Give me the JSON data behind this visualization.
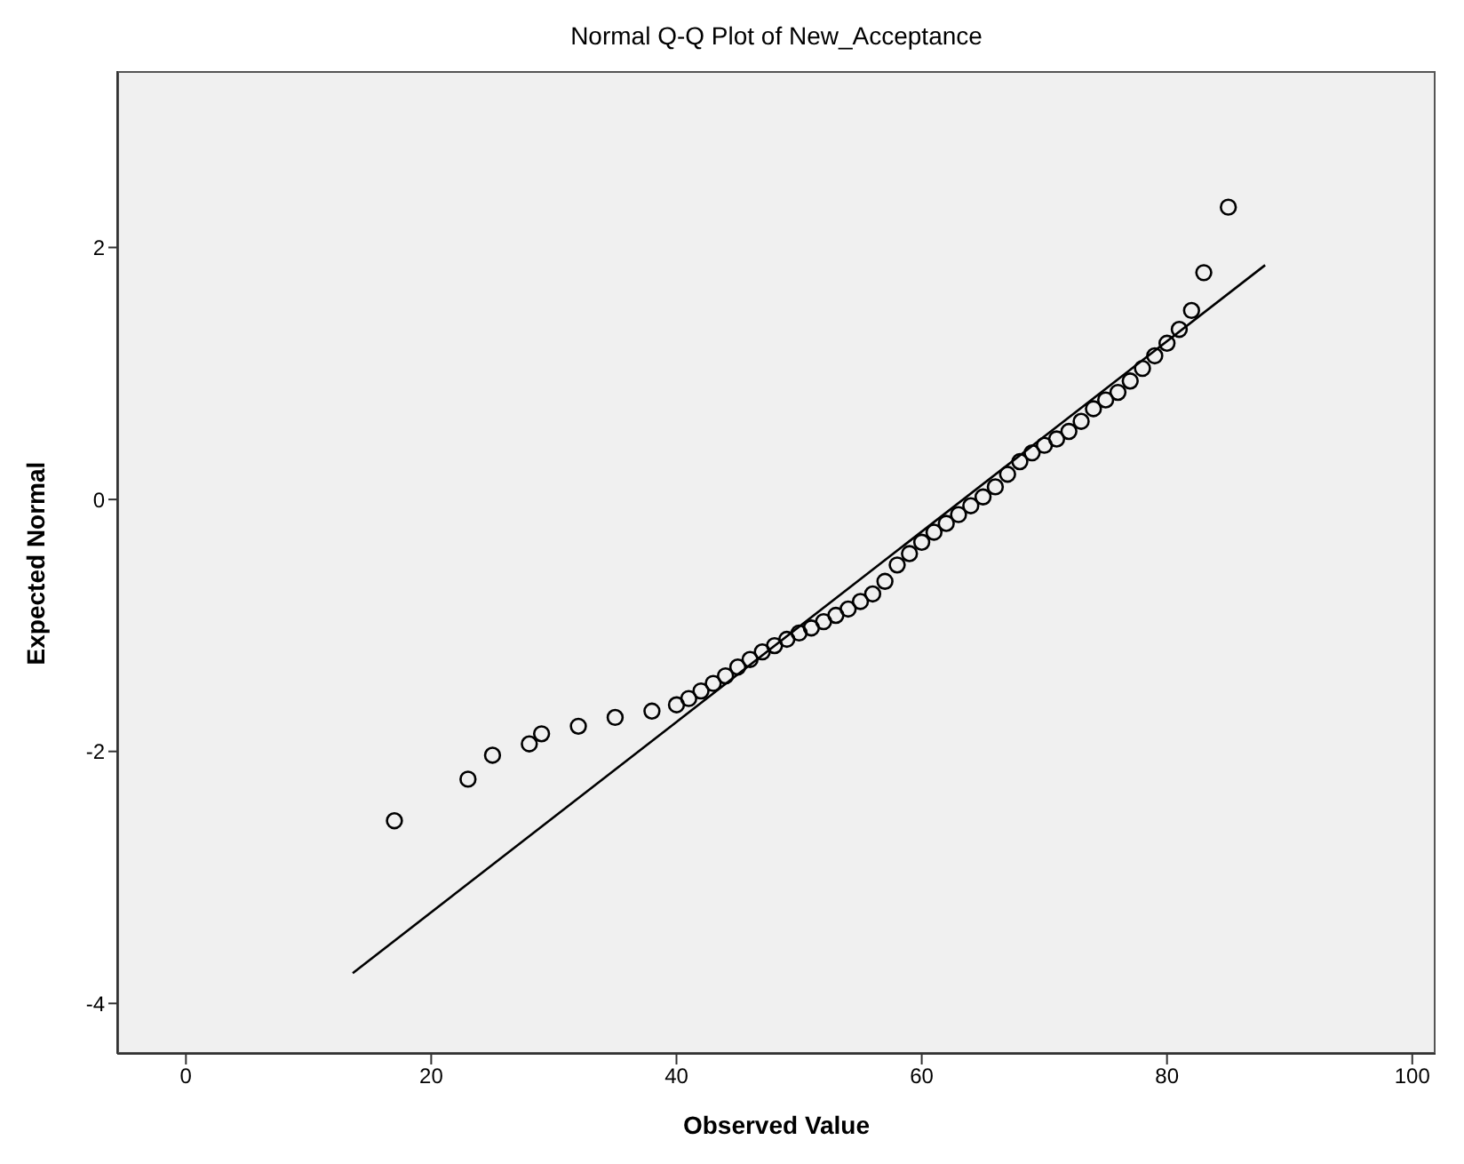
{
  "chart_data": {
    "type": "scatter",
    "title": "Normal Q-Q Plot of New_Acceptance",
    "xlabel": "Observed Value",
    "ylabel": "Expected Normal",
    "xlim": [
      -5.6,
      101.9
    ],
    "xticks": [
      0,
      20,
      40,
      60,
      80,
      100
    ],
    "ylim": [
      -4.4,
      3.4
    ],
    "yticks": [
      -4,
      -2,
      0,
      2
    ],
    "series": [
      {
        "color": "#000000",
        "marker": "circle",
        "x": [
          17,
          23,
          25,
          28,
          29,
          32,
          35,
          38,
          40,
          41,
          42,
          43,
          44,
          45,
          46,
          47,
          48,
          49,
          50,
          51,
          52,
          53,
          54,
          55,
          56,
          57,
          58,
          59,
          60,
          61,
          62,
          63,
          64,
          65,
          66,
          67,
          68,
          69,
          70,
          71,
          72,
          73,
          74,
          75,
          76,
          77,
          78,
          79,
          80,
          81,
          82,
          83,
          85
        ],
        "values": [
          -2.55,
          -2.22,
          -2.03,
          -1.94,
          -1.86,
          -1.8,
          -1.73,
          -1.68,
          -1.63,
          -1.58,
          -1.52,
          -1.46,
          -1.4,
          -1.33,
          -1.27,
          -1.21,
          -1.16,
          -1.11,
          -1.06,
          -1.02,
          -0.97,
          -0.92,
          -0.87,
          -0.81,
          -0.75,
          -0.65,
          -0.52,
          -0.43,
          -0.34,
          -0.26,
          -0.19,
          -0.12,
          -0.05,
          0.02,
          0.1,
          0.2,
          0.3,
          0.37,
          0.43,
          0.48,
          0.54,
          0.62,
          0.72,
          0.79,
          0.85,
          0.94,
          1.04,
          1.14,
          1.24,
          1.35,
          1.5,
          1.8,
          2.32
        ]
      },
      {
        "type": "line",
        "color": "#000000",
        "line_style": "solid",
        "marker": "none",
        "x": [
          13.6,
          88
        ],
        "values": [
          -3.76,
          1.86
        ]
      }
    ]
  }
}
